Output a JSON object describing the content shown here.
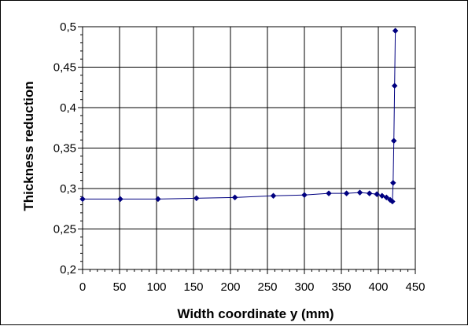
{
  "chart_data": {
    "type": "line",
    "title": "",
    "xlabel": "Width coordinate y (mm)",
    "ylabel": "Thickness reduction",
    "xlim": [
      0,
      450
    ],
    "ylim": [
      0.2,
      0.5
    ],
    "x_ticks": [
      0,
      50,
      100,
      150,
      200,
      250,
      300,
      350,
      400,
      450
    ],
    "x_tick_labels": [
      "0",
      "50",
      "100",
      "150",
      "200",
      "250",
      "300",
      "350",
      "400",
      "450"
    ],
    "y_ticks": [
      0.2,
      0.25,
      0.3,
      0.35,
      0.4,
      0.45,
      0.5
    ],
    "y_tick_labels": [
      "0,2",
      "0,25",
      "0,3",
      "0,35",
      "0,4",
      "0,45",
      "0,5"
    ],
    "grid": true,
    "legend": "none",
    "series": [
      {
        "color": "#000080",
        "marker": "diamond",
        "points": [
          [
            0,
            0.287
          ],
          [
            51,
            0.287
          ],
          [
            102,
            0.287
          ],
          [
            154,
            0.288
          ],
          [
            206,
            0.289
          ],
          [
            258,
            0.291
          ],
          [
            300,
            0.292
          ],
          [
            333,
            0.294
          ],
          [
            357,
            0.294
          ],
          [
            375,
            0.295
          ],
          [
            388,
            0.294
          ],
          [
            398,
            0.293
          ],
          [
            405,
            0.291
          ],
          [
            411,
            0.289
          ],
          [
            416,
            0.286
          ],
          [
            419,
            0.284
          ],
          [
            420,
            0.307
          ],
          [
            421,
            0.359
          ],
          [
            422,
            0.427
          ],
          [
            423,
            0.495
          ]
        ]
      }
    ]
  }
}
